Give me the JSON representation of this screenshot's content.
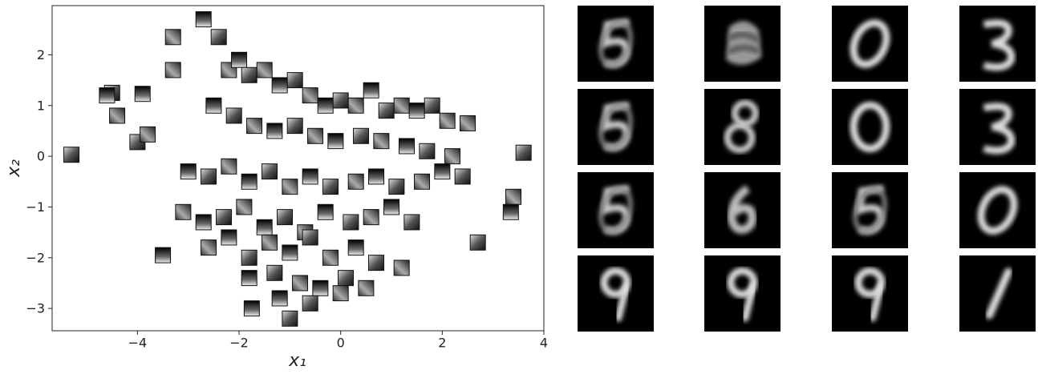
{
  "chart_data": {
    "type": "scatter",
    "xlabel": "x₁",
    "ylabel": "x₂",
    "xlim": [
      -5.68,
      4
    ],
    "ylim": [
      -3.44,
      2.97
    ],
    "xticks": [
      {
        "value": -4,
        "label": "−4"
      },
      {
        "value": -2,
        "label": "−2"
      },
      0,
      2,
      4
    ],
    "yticks": [
      {
        "value": -3,
        "label": "−3"
      },
      {
        "value": -2,
        "label": "−2"
      },
      {
        "value": -1,
        "label": "−1"
      },
      0,
      1,
      2
    ],
    "x": [
      -5.3,
      -3.3,
      -2.7,
      -4.5,
      -4.4,
      -3.9,
      -4.0,
      -3.8,
      -3.5,
      3.6,
      3.4,
      3.35,
      2.7,
      2.5,
      -1.75,
      -1.0,
      -3.3,
      -4.6,
      -2.4,
      -2.2,
      -2.0,
      -1.8,
      -1.5,
      -1.2,
      -0.9,
      -0.6,
      -0.3,
      0.0,
      0.3,
      0.6,
      0.9,
      1.2,
      1.5,
      1.8,
      2.1,
      -2.5,
      -2.1,
      -1.7,
      -1.3,
      -0.9,
      -0.5,
      -0.1,
      0.4,
      0.8,
      1.3,
      1.7,
      2.2,
      -3.0,
      -2.6,
      -2.2,
      -1.8,
      -1.4,
      -1.0,
      -0.6,
      -0.2,
      0.3,
      0.7,
      1.1,
      1.6,
      2.0,
      2.4,
      -3.1,
      -2.7,
      -2.3,
      -1.9,
      -1.5,
      -1.1,
      -0.7,
      -0.3,
      0.2,
      0.6,
      1.0,
      1.4,
      -2.6,
      -2.2,
      -1.8,
      -1.4,
      -1.0,
      -0.6,
      -0.2,
      0.3,
      0.7,
      1.2,
      -1.8,
      -1.3,
      -0.8,
      -0.4,
      0.1,
      0.5,
      -1.2,
      -0.6,
      0.0
    ],
    "y": [
      0.03,
      2.35,
      2.7,
      1.25,
      0.8,
      1.23,
      0.28,
      0.43,
      -1.95,
      0.07,
      -0.8,
      -1.1,
      -1.7,
      0.65,
      -3.0,
      -3.2,
      1.7,
      1.2,
      2.35,
      1.7,
      1.9,
      1.6,
      1.7,
      1.4,
      1.5,
      1.2,
      1.0,
      1.1,
      1.0,
      1.3,
      0.9,
      1.0,
      0.9,
      1.0,
      0.7,
      1.0,
      0.8,
      0.6,
      0.5,
      0.6,
      0.4,
      0.3,
      0.4,
      0.3,
      0.2,
      0.1,
      0.0,
      -0.3,
      -0.4,
      -0.2,
      -0.5,
      -0.3,
      -0.6,
      -0.4,
      -0.6,
      -0.5,
      -0.4,
      -0.6,
      -0.5,
      -0.3,
      -0.4,
      -1.1,
      -1.3,
      -1.2,
      -1.0,
      -1.4,
      -1.2,
      -1.5,
      -1.1,
      -1.3,
      -1.2,
      -1.0,
      -1.3,
      -1.8,
      -1.6,
      -2.0,
      -1.7,
      -1.9,
      -1.6,
      -2.0,
      -1.8,
      -2.1,
      -2.2,
      -2.4,
      -2.3,
      -2.5,
      -2.6,
      -2.4,
      -2.6,
      -2.8,
      -2.9,
      -2.7
    ]
  }
}
